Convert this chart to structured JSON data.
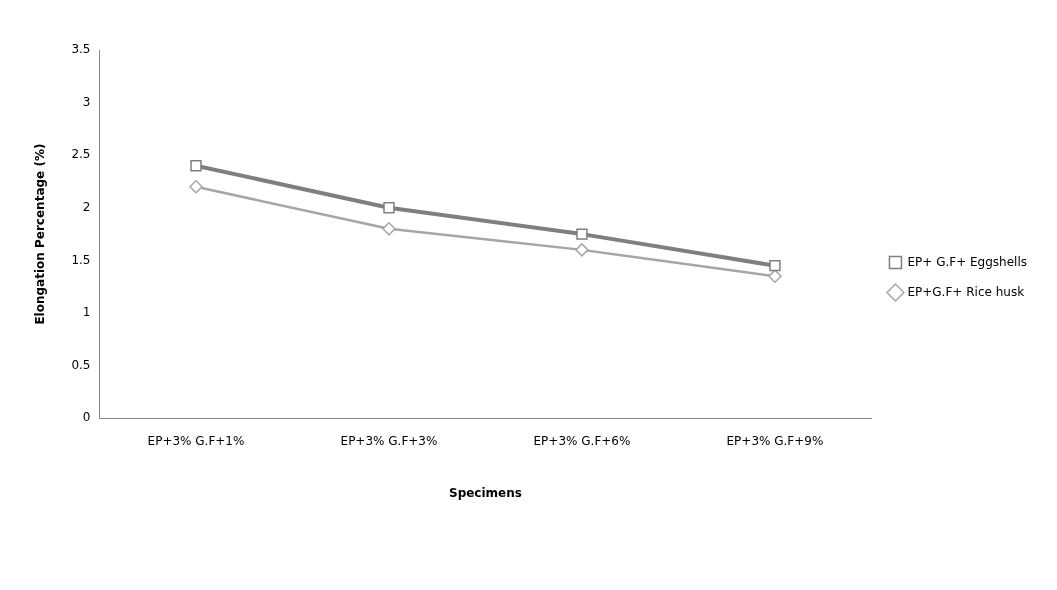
{
  "chart_data": {
    "type": "line",
    "xlabel": "Specimens",
    "ylabel": "Elongation Percentage (%)",
    "categories": [
      "EP+3% G.F+1%",
      "EP+3% G.F+3%",
      "EP+3% G.F+6%",
      "EP+3% G.F+9%"
    ],
    "series": [
      {
        "name": "EP+ G.F+ Eggshells",
        "color": "#7f7f7f",
        "marker": "square",
        "values": [
          2.4,
          2.0,
          1.75,
          1.45
        ]
      },
      {
        "name": "EP+G.F+ Rice husk",
        "color": "#a6a6a6",
        "marker": "diamond",
        "values": [
          2.2,
          1.8,
          1.6,
          1.35
        ]
      }
    ],
    "ylim": [
      0,
      3.5
    ],
    "yticks": [
      0,
      0.5,
      1,
      1.5,
      2,
      2.5,
      3,
      3.5
    ],
    "grid": false,
    "legend": "right"
  }
}
